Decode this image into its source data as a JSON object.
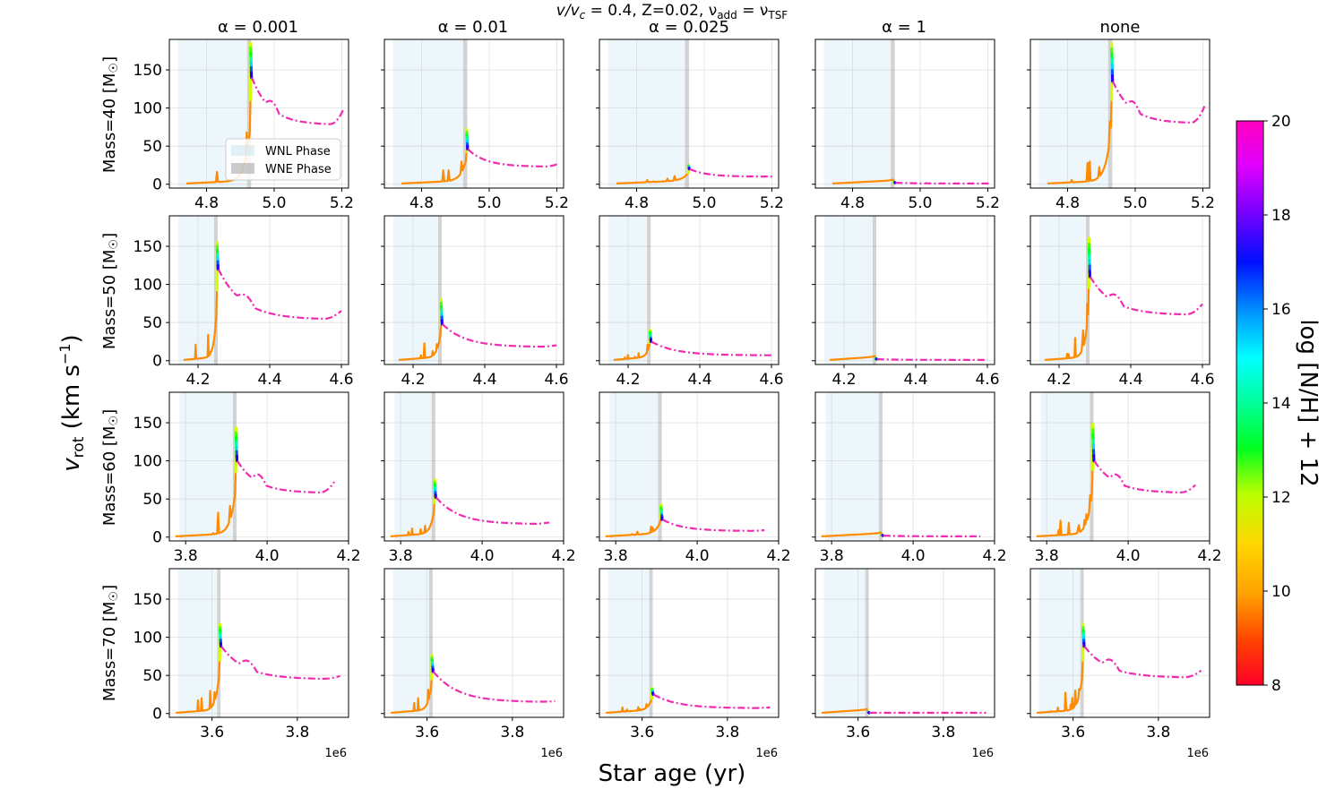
{
  "title": "v/v_c = 0.4, Z=0.02,  ν_add = ν_TSF",
  "title_parts": {
    "a": "v/v",
    "a_sub": "c",
    "b": " = 0.4, Z=0.02,  ν",
    "b_sub": "add",
    "c": " = ν",
    "c_sub": "TSF"
  },
  "ylabel": {
    "main": "v",
    "sub": "rot",
    "units": " (km s",
    "sup": "−1",
    "close": ")"
  },
  "xlabel": "Star age (yr)",
  "column_titles": [
    "α = 0.001",
    "α = 0.01",
    "α = 0.025",
    "α = 1",
    "none"
  ],
  "row_labels": [
    {
      "text": "Mass=40 [M",
      "sub": "☉",
      "close": "]"
    },
    {
      "text": "Mass=50 [M",
      "sub": "☉",
      "close": "]"
    },
    {
      "text": "Mass=60 [M",
      "sub": "☉",
      "close": "]"
    },
    {
      "text": "Mass=70 [M",
      "sub": "☉",
      "close": "]"
    }
  ],
  "offset_label": "1e6",
  "legend": {
    "wnl": "WNL Phase",
    "wne": "WNE Phase"
  },
  "colorbar": {
    "label": "log [N/H] + 12",
    "min": 8,
    "max": 20,
    "ticks": [
      "8",
      "10",
      "12",
      "14",
      "16",
      "18",
      "20"
    ],
    "colormap": "gist_rainbow_r"
  },
  "colors": {
    "grid": "#e0e0e0",
    "wnl_fill": "#add8e6",
    "wne_fill": "#808080",
    "tail": "#f02bb0",
    "growth": "#ff8c00"
  },
  "chart_data": {
    "type": "line",
    "ylim": [
      -5,
      190
    ],
    "yticks": [
      0,
      50,
      100,
      150
    ],
    "ytick_labels": [
      "0",
      "50",
      "100",
      "150"
    ],
    "rows": [
      {
        "mass": 40,
        "xlim": [
          4.69,
          5.22
        ],
        "xticks": [
          4.8,
          5.0,
          5.2
        ],
        "xtick_labels": [
          "4.8",
          "5.0",
          "5.2"
        ],
        "x_start": 4.74,
        "x_end": 5.205,
        "wnl": [
          4.715,
          4.925
        ],
        "wne_width": 0.012
      },
      {
        "mass": 50,
        "xlim": [
          4.12,
          4.62
        ],
        "xticks": [
          4.2,
          4.4,
          4.6
        ],
        "xtick_labels": [
          "4.2",
          "4.4",
          "4.6"
        ],
        "x_start": 4.16,
        "x_end": 4.6,
        "wnl": [
          4.145,
          4.255
        ],
        "wne_width": 0.01
      },
      {
        "mass": 60,
        "xlim": [
          3.76,
          4.2
        ],
        "xticks": [
          3.8,
          4.0,
          4.2
        ],
        "xtick_labels": [
          "3.8",
          "4.0",
          "4.2"
        ],
        "x_start": 3.775,
        "x_end": 4.165,
        "wnl": [
          3.785,
          3.925
        ],
        "wne_width": 0.009
      },
      {
        "mass": 70,
        "xlim": [
          3.5,
          3.92
        ],
        "xticks": [
          3.6,
          3.8
        ],
        "xtick_labels": [
          "3.6",
          "3.8"
        ],
        "x_start": 3.515,
        "x_end": 3.9,
        "wnl": [
          3.52,
          3.615
        ],
        "wne_width": 0.008
      }
    ],
    "panels": [
      [
        {
          "col": 0,
          "t_end": 4.932,
          "peak": 185,
          "tail_start": 140,
          "tail_min": 78,
          "tail_end": 98
        },
        {
          "col": 1,
          "t_end": 4.935,
          "peak": 72,
          "tail_start": 46,
          "tail_min": 23,
          "tail_end": 27
        },
        {
          "col": 2,
          "t_end": 4.955,
          "peak": 25,
          "tail_start": 20,
          "tail_min": 10,
          "tail_end": 10
        },
        {
          "col": 3,
          "t_end": 4.925,
          "peak": 3,
          "tail_start": 2,
          "tail_min": 1,
          "tail_end": 1
        },
        {
          "col": 4,
          "t_end": 4.932,
          "peak": 185,
          "tail_start": 135,
          "tail_min": 80,
          "tail_end": 102
        }
      ],
      [
        {
          "col": 0,
          "t_end": 4.255,
          "peak": 155,
          "tail_start": 120,
          "tail_min": 54,
          "tail_end": 65
        },
        {
          "col": 1,
          "t_end": 4.28,
          "peak": 80,
          "tail_start": 48,
          "tail_min": 18,
          "tail_end": 20
        },
        {
          "col": 2,
          "t_end": 4.263,
          "peak": 40,
          "tail_start": 25,
          "tail_min": 7,
          "tail_end": 7
        },
        {
          "col": 3,
          "t_end": 4.29,
          "peak": 3,
          "tail_start": 2,
          "tail_min": 1,
          "tail_end": 1
        },
        {
          "col": 4,
          "t_end": 4.285,
          "peak": 160,
          "tail_start": 110,
          "tail_min": 60,
          "tail_end": 74
        }
      ],
      [
        {
          "col": 0,
          "t_end": 3.925,
          "peak": 143,
          "tail_start": 100,
          "tail_min": 58,
          "tail_end": 72
        },
        {
          "col": 1,
          "t_end": 3.885,
          "peak": 75,
          "tail_start": 52,
          "tail_min": 17,
          "tail_end": 19
        },
        {
          "col": 2,
          "t_end": 3.913,
          "peak": 42,
          "tail_start": 23,
          "tail_min": 8,
          "tail_end": 9
        },
        {
          "col": 3,
          "t_end": 3.925,
          "peak": 3,
          "tail_start": 2,
          "tail_min": 1,
          "tail_end": 1
        },
        {
          "col": 4,
          "t_end": 3.915,
          "peak": 148,
          "tail_start": 100,
          "tail_min": 58,
          "tail_end": 68
        }
      ],
      [
        {
          "col": 0,
          "t_end": 3.62,
          "peak": 117,
          "tail_start": 88,
          "tail_min": 45,
          "tail_end": 49
        },
        {
          "col": 1,
          "t_end": 3.613,
          "peak": 76,
          "tail_start": 55,
          "tail_min": 15,
          "tail_end": 16
        },
        {
          "col": 2,
          "t_end": 3.625,
          "peak": 33,
          "tail_start": 25,
          "tail_min": 7,
          "tail_end": 8
        },
        {
          "col": 3,
          "t_end": 3.625,
          "peak": 2,
          "tail_start": 1,
          "tail_min": 1,
          "tail_end": 1
        },
        {
          "col": 4,
          "t_end": 3.625,
          "peak": 117,
          "tail_start": 88,
          "tail_min": 47,
          "tail_end": 56
        }
      ]
    ]
  }
}
